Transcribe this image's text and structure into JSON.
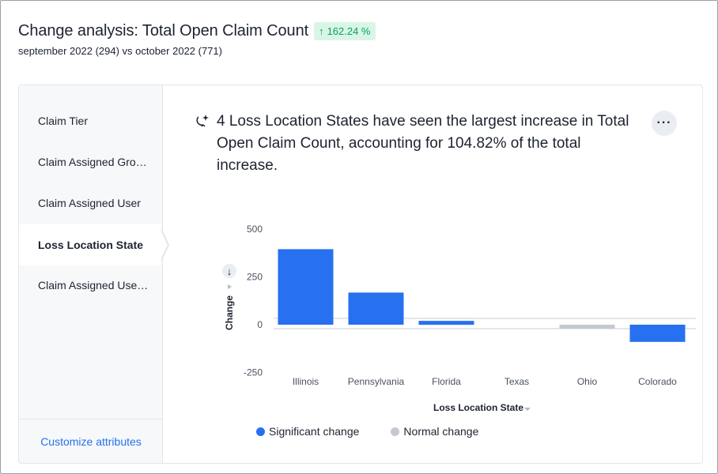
{
  "header": {
    "title": "Change analysis: Total Open Claim Count",
    "badge": "162.24 %",
    "subtitle": "september 2022 (294) vs october 2022 (771)"
  },
  "sidebar": {
    "items": [
      {
        "label": "Claim Tier",
        "active": false
      },
      {
        "label": "Claim Assigned Gro…",
        "active": false
      },
      {
        "label": "Claim Assigned User",
        "active": false
      },
      {
        "label": "Loss Location State",
        "active": true
      },
      {
        "label": "Claim Assigned Use…",
        "active": false
      }
    ],
    "footer_link": "Customize attributes"
  },
  "insight": {
    "text": "4 Loss Location States have seen the largest increase in Total Open Claim Count, accounting for 104.82% of the total increase.",
    "icon": "insight-sparkle-icon"
  },
  "more_menu_label": "···",
  "colors": {
    "significant": "#2770ef",
    "normal": "#c3c9d2",
    "badge_bg": "#d9f5e7",
    "badge_text": "#06a35a",
    "link": "#2770ef"
  },
  "chart_data": {
    "type": "bar",
    "categories": [
      "Illinois",
      "Pennsylvania",
      "Florida",
      "Texas",
      "Ohio",
      "Colorado"
    ],
    "values": [
      395,
      168,
      20,
      0,
      -15,
      -90
    ],
    "significance": [
      "significant",
      "significant",
      "significant",
      "normal",
      "normal",
      "significant"
    ],
    "xlabel": "Loss Location State",
    "ylabel": "Change",
    "yticks": [
      500,
      250,
      0,
      -250
    ],
    "ylim": [
      -250,
      500
    ],
    "legend": [
      {
        "name": "Significant change",
        "color": "#2770ef"
      },
      {
        "name": "Normal change",
        "color": "#c3c9d2"
      }
    ]
  }
}
